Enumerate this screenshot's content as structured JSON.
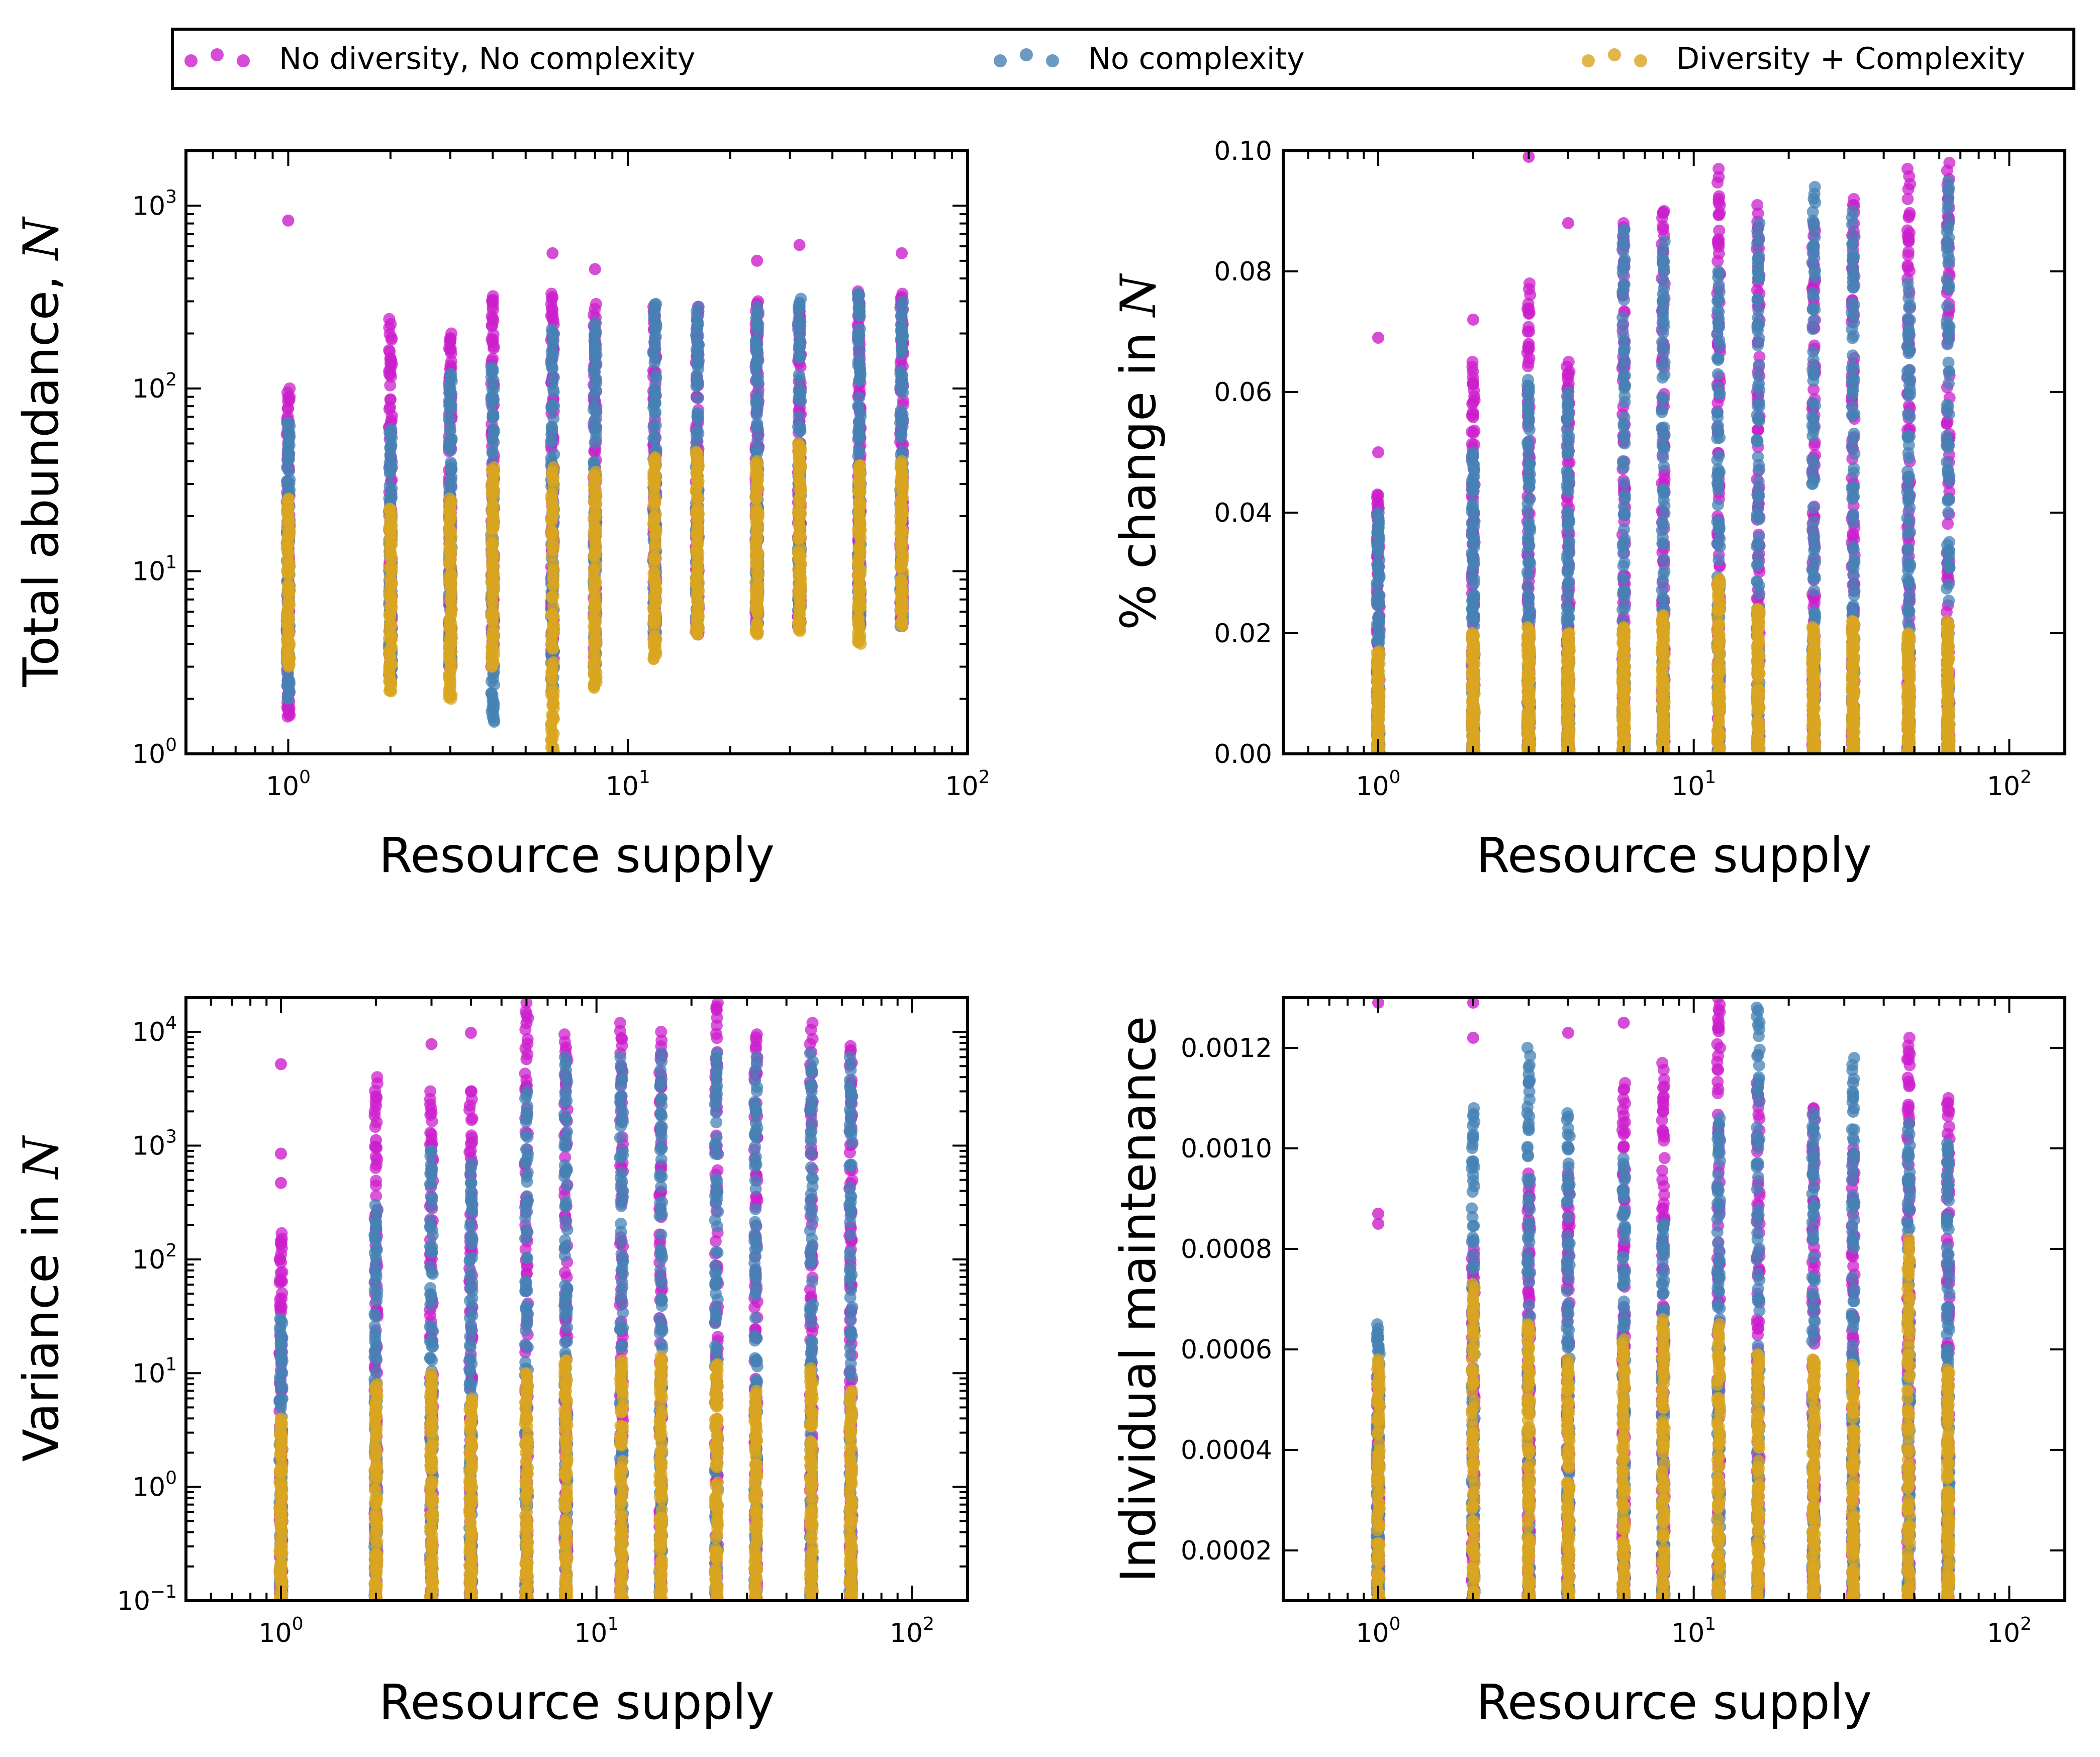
{
  "colors": {
    "magenta": "#CC1FCC",
    "blue": "#4682B4",
    "gold": "#DAA520"
  },
  "legend": {
    "placement": "top",
    "entries": [
      {
        "label": "No diversity, No complexity",
        "color": "#CC1FCC"
      },
      {
        "label": "No complexity",
        "color": "#4682B4"
      },
      {
        "label": "Diversity + Complexity",
        "color": "#DAA520"
      }
    ]
  },
  "chart_data": [
    {
      "type": "scatter",
      "xlabel": "Resource supply",
      "ylabel": "Total abundance, ",
      "ylabel_italic": "N",
      "xscale": "log",
      "yscale": "log",
      "xlim": [
        0.5,
        100
      ],
      "ylim": [
        1,
        2000
      ],
      "xticks": [
        {
          "base": "10",
          "exp": "0",
          "v": 1
        },
        {
          "base": "10",
          "exp": "1",
          "v": 10
        },
        {
          "base": "10",
          "exp": "2",
          "v": 100
        }
      ],
      "yticks": [
        {
          "base": "10",
          "exp": "0",
          "v": 1
        },
        {
          "base": "10",
          "exp": "1",
          "v": 10
        },
        {
          "base": "10",
          "exp": "2",
          "v": 100
        },
        {
          "base": "10",
          "exp": "3",
          "v": 1000
        }
      ],
      "x": [
        1,
        2,
        3,
        4,
        6,
        8,
        12,
        16,
        24,
        32,
        48,
        64
      ],
      "series": [
        {
          "name": "No diversity, No complexity",
          "color": "#CC1FCC",
          "min": [
            1.6,
            2.5,
            3,
            3,
            3,
            3,
            4,
            4.5,
            5,
            5,
            5,
            5
          ],
          "max": [
            100,
            240,
            200,
            320,
            330,
            290,
            280,
            280,
            300,
            280,
            340,
            330
          ],
          "outliers": [
            [
              1,
              830
            ],
            [
              6,
              550
            ],
            [
              8,
              450
            ],
            [
              24,
              500
            ],
            [
              32,
              610
            ],
            [
              64,
              550
            ]
          ]
        },
        {
          "name": "No complexity",
          "color": "#4682B4",
          "min": [
            2,
            2.5,
            3,
            1.5,
            2.2,
            3,
            4.5,
            5,
            5,
            5,
            5,
            5
          ],
          "max": [
            65,
            60,
            120,
            130,
            210,
            230,
            290,
            280,
            280,
            310,
            330,
            300
          ],
          "outliers": []
        },
        {
          "name": "Diversity + Complexity",
          "color": "#DAA520",
          "min": [
            3,
            2.2,
            2,
            3,
            1,
            2.3,
            3.3,
            4.5,
            4.5,
            4.7,
            4,
            5
          ],
          "max": [
            25,
            22,
            25,
            37,
            37,
            35,
            42,
            45,
            40,
            50,
            38,
            40
          ],
          "outliers": []
        }
      ]
    },
    {
      "type": "scatter",
      "xlabel": "Resource supply",
      "ylabel": "% change in ",
      "ylabel_italic": "N",
      "xscale": "log",
      "yscale": "linear",
      "xlim": [
        0.5,
        150
      ],
      "ylim": [
        0,
        0.1
      ],
      "xticks": [
        {
          "base": "10",
          "exp": "0",
          "v": 1
        },
        {
          "base": "10",
          "exp": "1",
          "v": 10
        },
        {
          "base": "10",
          "exp": "2",
          "v": 100
        }
      ],
      "yticks": [
        {
          "label": "0.00",
          "v": 0
        },
        {
          "label": "0.02",
          "v": 0.02
        },
        {
          "label": "0.04",
          "v": 0.04
        },
        {
          "label": "0.06",
          "v": 0.06
        },
        {
          "label": "0.08",
          "v": 0.08
        },
        {
          "label": "0.10",
          "v": 0.1
        }
      ],
      "x": [
        1,
        2,
        3,
        4,
        6,
        8,
        12,
        16,
        24,
        32,
        48,
        64
      ],
      "series": [
        {
          "name": "No diversity, No complexity",
          "color": "#CC1FCC",
          "min": [
            0,
            0,
            0,
            0,
            0,
            0,
            0,
            0,
            0,
            0,
            0,
            0
          ],
          "max": [
            0.043,
            0.065,
            0.078,
            0.065,
            0.088,
            0.09,
            0.097,
            0.091,
            0.088,
            0.092,
            0.097,
            0.098
          ],
          "outliers": [
            [
              1,
              0.069
            ],
            [
              1,
              0.05
            ],
            [
              2,
              0.072
            ],
            [
              3,
              0.099
            ],
            [
              4,
              0.088
            ],
            [
              12,
              0.092
            ]
          ]
        },
        {
          "name": "No complexity",
          "color": "#4682B4",
          "min": [
            0,
            0,
            0,
            0,
            0,
            0,
            0,
            0,
            0,
            0,
            0,
            0
          ],
          "max": [
            0.04,
            0.05,
            0.062,
            0.06,
            0.087,
            0.085,
            0.08,
            0.088,
            0.094,
            0.09,
            0.078,
            0.095
          ],
          "outliers": []
        },
        {
          "name": "Diversity + Complexity",
          "color": "#DAA520",
          "min": [
            0,
            0,
            0,
            0,
            0,
            0,
            0,
            0,
            0,
            0,
            0,
            0
          ],
          "max": [
            0.017,
            0.02,
            0.021,
            0.02,
            0.021,
            0.023,
            0.029,
            0.024,
            0.021,
            0.022,
            0.02,
            0.022
          ],
          "outliers": []
        }
      ]
    },
    {
      "type": "scatter",
      "xlabel": "Resource supply",
      "ylabel": "Variance in ",
      "ylabel_italic": "N",
      "xscale": "log",
      "yscale": "log",
      "xlim": [
        0.5,
        150
      ],
      "ylim": [
        0.1,
        20000
      ],
      "xticks": [
        {
          "base": "10",
          "exp": "0",
          "v": 1
        },
        {
          "base": "10",
          "exp": "1",
          "v": 10
        },
        {
          "base": "10",
          "exp": "2",
          "v": 100
        }
      ],
      "yticks": [
        {
          "base": "10",
          "exp": "−1",
          "v": 0.1
        },
        {
          "base": "10",
          "exp": "0",
          "v": 1
        },
        {
          "base": "10",
          "exp": "1",
          "v": 10
        },
        {
          "base": "10",
          "exp": "2",
          "v": 100
        },
        {
          "base": "10",
          "exp": "3",
          "v": 1000
        },
        {
          "base": "10",
          "exp": "4",
          "v": 10000
        }
      ],
      "x": [
        1,
        2,
        3,
        4,
        6,
        8,
        12,
        16,
        24,
        32,
        48,
        64
      ],
      "series": [
        {
          "name": "No diversity, No complexity",
          "color": "#CC1FCC",
          "min": [
            0.1,
            0.1,
            0.1,
            0.1,
            0.1,
            0.1,
            0.1,
            0.1,
            0.1,
            0.1,
            0.1,
            0.1
          ],
          "max": [
            170,
            4000,
            3000,
            3000,
            18000,
            9500,
            12000,
            10000,
            18000,
            9500,
            12000,
            7500
          ],
          "outliers": [
            [
              1,
              5200
            ],
            [
              1,
              850
            ],
            [
              1,
              470
            ],
            [
              3,
              7800
            ],
            [
              4,
              9800
            ]
          ]
        },
        {
          "name": "No complexity",
          "color": "#4682B4",
          "min": [
            0.1,
            0.1,
            0.1,
            0.1,
            0.1,
            0.1,
            0.1,
            0.1,
            0.1,
            0.1,
            0.1,
            0.1
          ],
          "max": [
            30,
            300,
            900,
            700,
            3000,
            6000,
            6000,
            6500,
            6500,
            6000,
            6500,
            6000
          ],
          "outliers": []
        },
        {
          "name": "Diversity + Complexity",
          "color": "#DAA520",
          "min": [
            0.1,
            0.1,
            0.1,
            0.1,
            0.1,
            0.1,
            0.1,
            0.1,
            0.1,
            0.1,
            0.1,
            0.1
          ],
          "max": [
            4,
            8,
            10,
            6,
            10,
            13,
            13,
            14,
            12,
            7,
            11,
            7
          ],
          "outliers": []
        }
      ]
    },
    {
      "type": "scatter",
      "xlabel": "Resource supply",
      "ylabel": "Individual maintenance",
      "ylabel_italic": "",
      "xscale": "log",
      "yscale": "linear",
      "xlim": [
        0.5,
        150
      ],
      "ylim": [
        0.0001,
        0.0013
      ],
      "xticks": [
        {
          "base": "10",
          "exp": "0",
          "v": 1
        },
        {
          "base": "10",
          "exp": "1",
          "v": 10
        },
        {
          "base": "10",
          "exp": "2",
          "v": 100
        }
      ],
      "yticks": [
        {
          "label": "0.0002",
          "v": 0.0002
        },
        {
          "label": "0.0004",
          "v": 0.0004
        },
        {
          "label": "0.0006",
          "v": 0.0006
        },
        {
          "label": "0.0008",
          "v": 0.0008
        },
        {
          "label": "0.0010",
          "v": 0.001
        },
        {
          "label": "0.0012",
          "v": 0.0012
        }
      ],
      "x": [
        1,
        2,
        3,
        4,
        6,
        8,
        12,
        16,
        24,
        32,
        48,
        64
      ],
      "series": [
        {
          "name": "No diversity, No complexity",
          "color": "#CC1FCC",
          "min": [
            0.0001,
            0.0001,
            0.0001,
            0.0001,
            0.0001,
            0.0001,
            0.0001,
            0.0001,
            0.0001,
            0.0001,
            0.0001,
            0.0001
          ],
          "max": [
            0.00055,
            0.0008,
            0.00095,
            0.00095,
            0.00113,
            0.00117,
            0.0013,
            0.00113,
            0.00108,
            0.001,
            0.00122,
            0.0011
          ],
          "outliers": [
            [
              1,
              0.00129
            ],
            [
              1,
              0.00087
            ],
            [
              1,
              0.00085
            ],
            [
              2,
              0.00129
            ],
            [
              2,
              0.00122
            ],
            [
              3,
              0.00113
            ],
            [
              4,
              0.00123
            ],
            [
              6,
              0.00125
            ],
            [
              12,
              0.00125
            ]
          ]
        },
        {
          "name": "No complexity",
          "color": "#4682B4",
          "min": [
            0.0001,
            0.0001,
            0.0001,
            0.0001,
            0.0001,
            0.0001,
            0.0001,
            0.0001,
            0.0001,
            0.0001,
            0.0001,
            0.0001
          ],
          "max": [
            0.00065,
            0.00108,
            0.0012,
            0.00107,
            0.00098,
            0.00085,
            0.00106,
            0.00128,
            0.00107,
            0.00118,
            0.00105,
            0.00101
          ],
          "outliers": []
        },
        {
          "name": "Diversity + Complexity",
          "color": "#DAA520",
          "min": [
            0.0001,
            0.0001,
            0.0001,
            0.0001,
            0.0001,
            0.0001,
            0.0001,
            0.0001,
            0.0001,
            0.0001,
            0.0001,
            0.0001
          ],
          "max": [
            0.00058,
            0.00073,
            0.00065,
            0.00058,
            0.00062,
            0.00066,
            0.00065,
            0.00059,
            0.00058,
            0.00057,
            0.00082,
            0.00056
          ],
          "outliers": []
        }
      ]
    }
  ]
}
